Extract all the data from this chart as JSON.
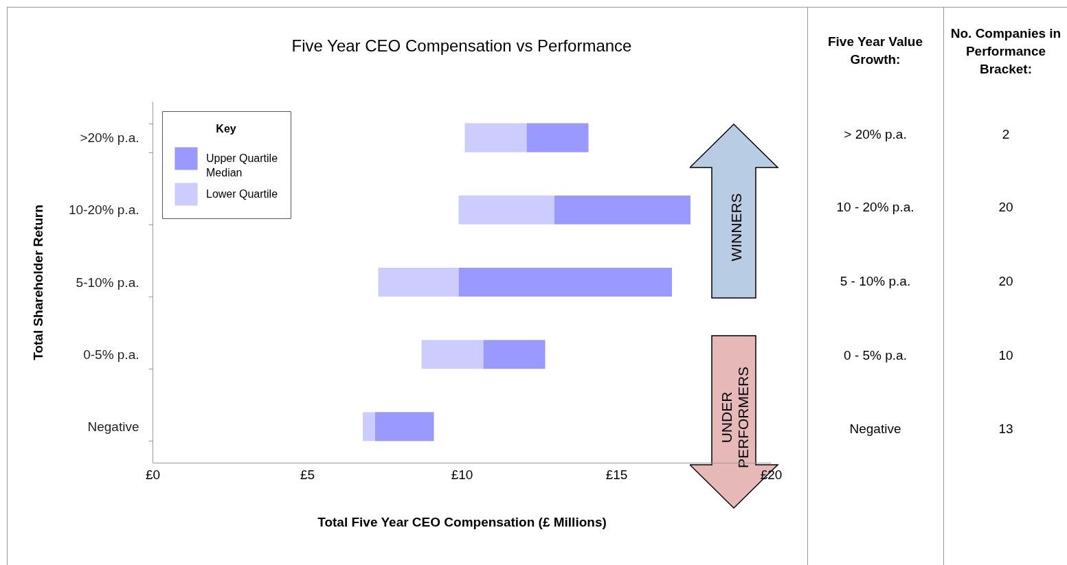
{
  "chart_data": [
    {
      "type": "bar",
      "orientation": "horizontal",
      "title": "Five Year CEO Compensation vs Performance",
      "xlabel": "Total Five Year CEO Compensation (£ Millions)",
      "ylabel": "Total Shareholder Return",
      "legend_title": "Key",
      "legend": "top left",
      "categories": [
        ">20% p.a.",
        "10-20% p.a.",
        "5-10% p.a.",
        "0-5% p.a.",
        "Negative"
      ],
      "series": [
        {
          "name": "Lower Quartile",
          "color": "#ccccff",
          "base": [
            10.1,
            9.9,
            7.3,
            8.7,
            6.8
          ],
          "values": [
            2.0,
            3.1,
            2.6,
            2.0,
            0.4
          ]
        },
        {
          "name": "Upper Quartile",
          "color": "#9999ff",
          "base": [
            12.1,
            13.0,
            9.9,
            10.7,
            7.2
          ],
          "values": [
            2.0,
            4.4,
            6.9,
            2.0,
            1.9
          ]
        }
      ],
      "xlim": [
        0,
        20
      ],
      "xticks": [
        {
          "value": 0,
          "label": "£0"
        },
        {
          "value": 5,
          "label": "£5"
        },
        {
          "value": 10,
          "label": "£10"
        },
        {
          "value": 15,
          "label": "£15"
        },
        {
          "value": 20,
          "label": "£20"
        }
      ],
      "grid": false,
      "annotations": [
        "Median",
        "WINNERS",
        "UNDER PERFORMERS"
      ]
    },
    {
      "type": "other",
      "annotations": [
        "Five Year Value Growth:",
        "No. Companies in Performance Bracket:",
        "> 20% p.a.",
        "2",
        "10 - 20% p.a.",
        "20",
        "5 - 10% p.a.",
        "20",
        "0 - 5% p.a.",
        "10",
        "Negative",
        "13"
      ]
    }
  ]
}
